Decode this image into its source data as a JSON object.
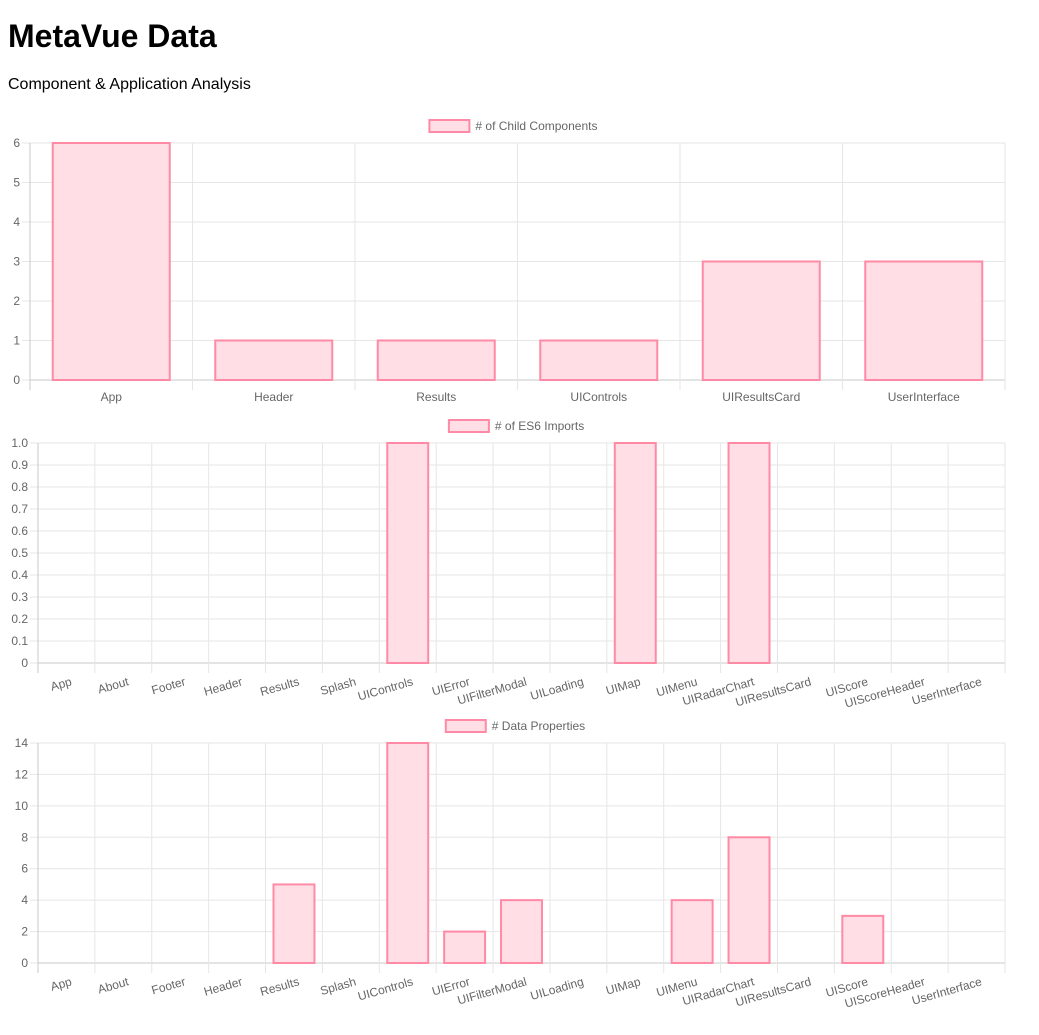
{
  "header": {
    "title": "MetaVue Data",
    "subtitle": "Component & Application Analysis"
  },
  "colors": {
    "bar_fill": "#ffdfe5",
    "bar_border": "#ff8aa5",
    "grid": "#e6e6e6",
    "axis": "#c8c8c8",
    "tick_text": "#666666"
  },
  "chart_data": [
    {
      "type": "bar",
      "legend": "# of Child Components",
      "categories": [
        "App",
        "Header",
        "Results",
        "UIControls",
        "UIResultsCard",
        "UserInterface"
      ],
      "values": [
        6,
        1,
        1,
        1,
        3,
        3
      ],
      "ylim": [
        0,
        6
      ],
      "yticks": [
        "0",
        "1",
        "2",
        "3",
        "4",
        "5",
        "6"
      ],
      "grid": true,
      "legend_position": "top"
    },
    {
      "type": "bar",
      "legend": "# of ES6 Imports",
      "categories": [
        "App",
        "About",
        "Footer",
        "Header",
        "Results",
        "Splash",
        "UIControls",
        "UIError",
        "UIFilterModal",
        "UILoading",
        "UIMap",
        "UIMenu",
        "UIRadarChart",
        "UIResultsCard",
        "UIScore",
        "UIScoreHeader",
        "UserInterface"
      ],
      "values": [
        0,
        0,
        0,
        0,
        0,
        0,
        1,
        0,
        0,
        0,
        1,
        0,
        1,
        0,
        0,
        0,
        0
      ],
      "ylim": [
        0,
        1
      ],
      "yticks": [
        "0",
        "0.1",
        "0.2",
        "0.3",
        "0.4",
        "0.5",
        "0.6",
        "0.7",
        "0.8",
        "0.9",
        "1.0"
      ],
      "grid": true,
      "legend_position": "top"
    },
    {
      "type": "bar",
      "legend": "# Data Properties",
      "categories": [
        "App",
        "About",
        "Footer",
        "Header",
        "Results",
        "Splash",
        "UIControls",
        "UIError",
        "UIFilterModal",
        "UILoading",
        "UIMap",
        "UIMenu",
        "UIRadarChart",
        "UIResultsCard",
        "UIScore",
        "UIScoreHeader",
        "UserInterface"
      ],
      "values": [
        0,
        0,
        0,
        0,
        5,
        0,
        14,
        2,
        4,
        0,
        0,
        4,
        8,
        0,
        3,
        0,
        0
      ],
      "ylim": [
        0,
        14
      ],
      "yticks": [
        "0",
        "2",
        "4",
        "6",
        "8",
        "10",
        "12",
        "14"
      ],
      "grid": true,
      "legend_position": "top"
    }
  ]
}
